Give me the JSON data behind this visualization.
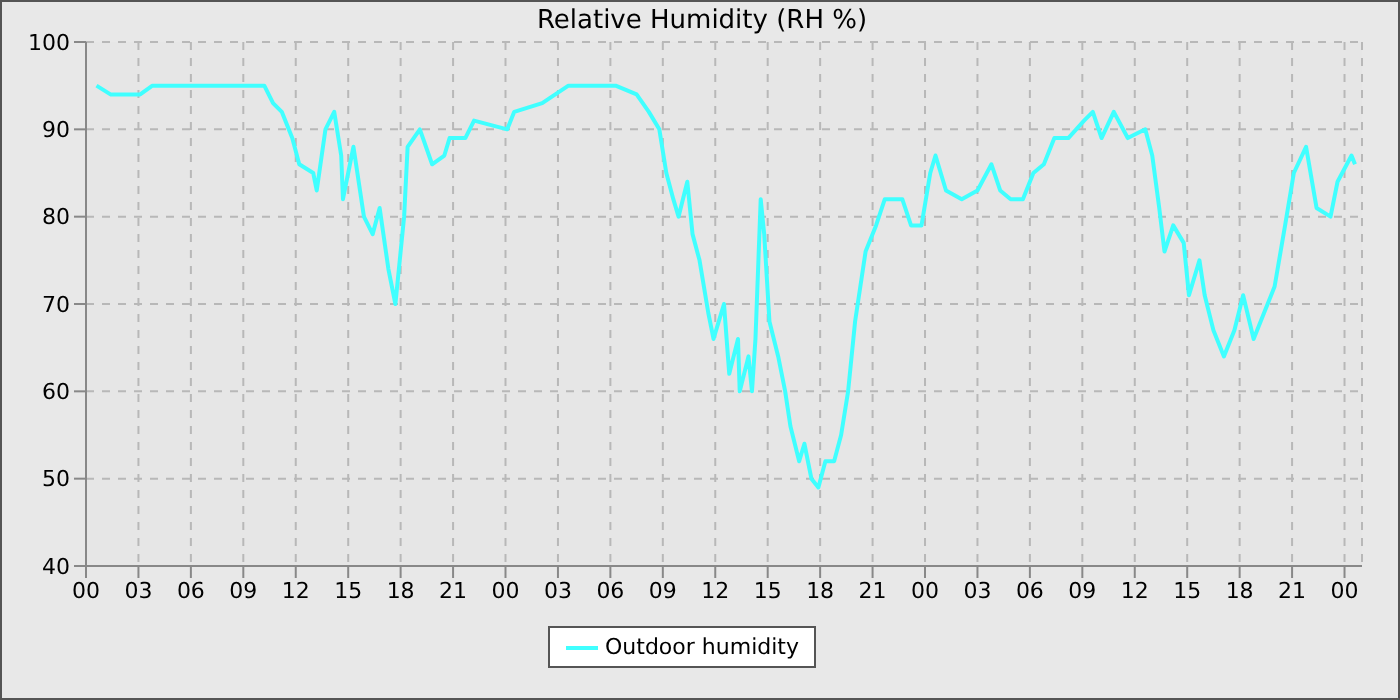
{
  "chart_data": {
    "type": "line",
    "title": "Relative Humidity (RH %)",
    "x": [
      0.6,
      1.4,
      3.1,
      3.8,
      7.3,
      10.2,
      10.7,
      11.2,
      11.8,
      12.2,
      13.0,
      13.2,
      13.7,
      14.2,
      14.6,
      14.7,
      15.1,
      15.3,
      15.9,
      16.4,
      16.8,
      17.3,
      17.7,
      18.2,
      18.4,
      19.1,
      19.8,
      20.5,
      20.8,
      21.7,
      22.2,
      24.1,
      24.5,
      26.1,
      27.6,
      30.3,
      31.5,
      32.2,
      32.8,
      33.2,
      33.6,
      33.9,
      34.4,
      34.7,
      35.1,
      35.6,
      35.9,
      36.5,
      36.8,
      37.3,
      37.4,
      37.9,
      38.1,
      38.3,
      38.6,
      38.8,
      39.1,
      39.6,
      40.0,
      40.3,
      40.8,
      41.1,
      41.5,
      41.9,
      42.3,
      42.8,
      43.2,
      43.6,
      44.0,
      44.6,
      45.2,
      45.7,
      46.7,
      47.2,
      47.8,
      48.3,
      48.6,
      49.2,
      50.1,
      51.0,
      51.8,
      52.3,
      52.9,
      53.6,
      54.2,
      54.8,
      55.4,
      56.2,
      57.1,
      57.6,
      58.1,
      58.8,
      59.6,
      60.6,
      61.0,
      61.4,
      61.7,
      62.2,
      62.8,
      63.1,
      63.7,
      64.0,
      64.5,
      65.1,
      65.7,
      66.2,
      66.8,
      67.4,
      68.0,
      68.6,
      69.1,
      69.8,
      70.4,
      71.2,
      71.6,
      72.4,
      72.6
    ],
    "series": [
      {
        "name": "Outdoor humidity",
        "color": "#40ffff",
        "values": [
          95,
          94,
          94,
          95,
          95,
          95,
          93,
          92,
          89,
          86,
          85,
          83,
          90,
          92,
          87,
          82,
          86,
          88,
          80,
          78,
          81,
          74,
          70,
          80,
          88,
          90,
          86,
          87,
          89,
          89,
          91,
          90,
          92,
          93,
          95,
          95,
          94,
          92,
          90,
          85,
          82,
          80,
          84,
          78,
          75,
          69,
          66,
          70,
          62,
          66,
          60,
          64,
          60,
          66,
          82,
          78,
          68,
          64,
          60,
          56,
          52,
          54,
          50,
          49,
          52,
          52,
          55,
          60,
          68,
          76,
          79,
          82,
          82,
          79,
          79,
          85,
          87,
          83,
          82,
          83,
          86,
          83,
          82,
          82,
          85,
          86,
          89,
          89,
          91,
          92,
          89,
          92,
          89,
          90,
          87,
          81,
          76,
          79,
          77,
          71,
          75,
          71,
          67,
          64,
          67,
          71,
          66,
          69,
          72,
          79,
          85,
          88,
          81,
          80,
          84,
          87,
          86
        ]
      }
    ],
    "xlim": [
      0,
      73
    ],
    "xticks": [
      {
        "value": 0,
        "label": "00"
      },
      {
        "value": 3,
        "label": "03"
      },
      {
        "value": 6,
        "label": "06"
      },
      {
        "value": 9,
        "label": "09"
      },
      {
        "value": 12,
        "label": "12"
      },
      {
        "value": 15,
        "label": "15"
      },
      {
        "value": 18,
        "label": "18"
      },
      {
        "value": 21,
        "label": "21"
      },
      {
        "value": 24,
        "label": "00"
      },
      {
        "value": 27,
        "label": "03"
      },
      {
        "value": 30,
        "label": "06"
      },
      {
        "value": 33,
        "label": "09"
      },
      {
        "value": 36,
        "label": "12"
      },
      {
        "value": 39,
        "label": "15"
      },
      {
        "value": 42,
        "label": "18"
      },
      {
        "value": 45,
        "label": "21"
      },
      {
        "value": 48,
        "label": "00"
      },
      {
        "value": 51,
        "label": "03"
      },
      {
        "value": 54,
        "label": "06"
      },
      {
        "value": 57,
        "label": "09"
      },
      {
        "value": 60,
        "label": "12"
      },
      {
        "value": 63,
        "label": "15"
      },
      {
        "value": 66,
        "label": "18"
      },
      {
        "value": 69,
        "label": "21"
      },
      {
        "value": 72,
        "label": "00"
      }
    ],
    "ylim": [
      40,
      100
    ],
    "yticks": [
      40,
      50,
      60,
      70,
      80,
      90,
      100
    ],
    "grid": true,
    "legend": "bottom",
    "marker": "none",
    "line_style": "solid"
  }
}
